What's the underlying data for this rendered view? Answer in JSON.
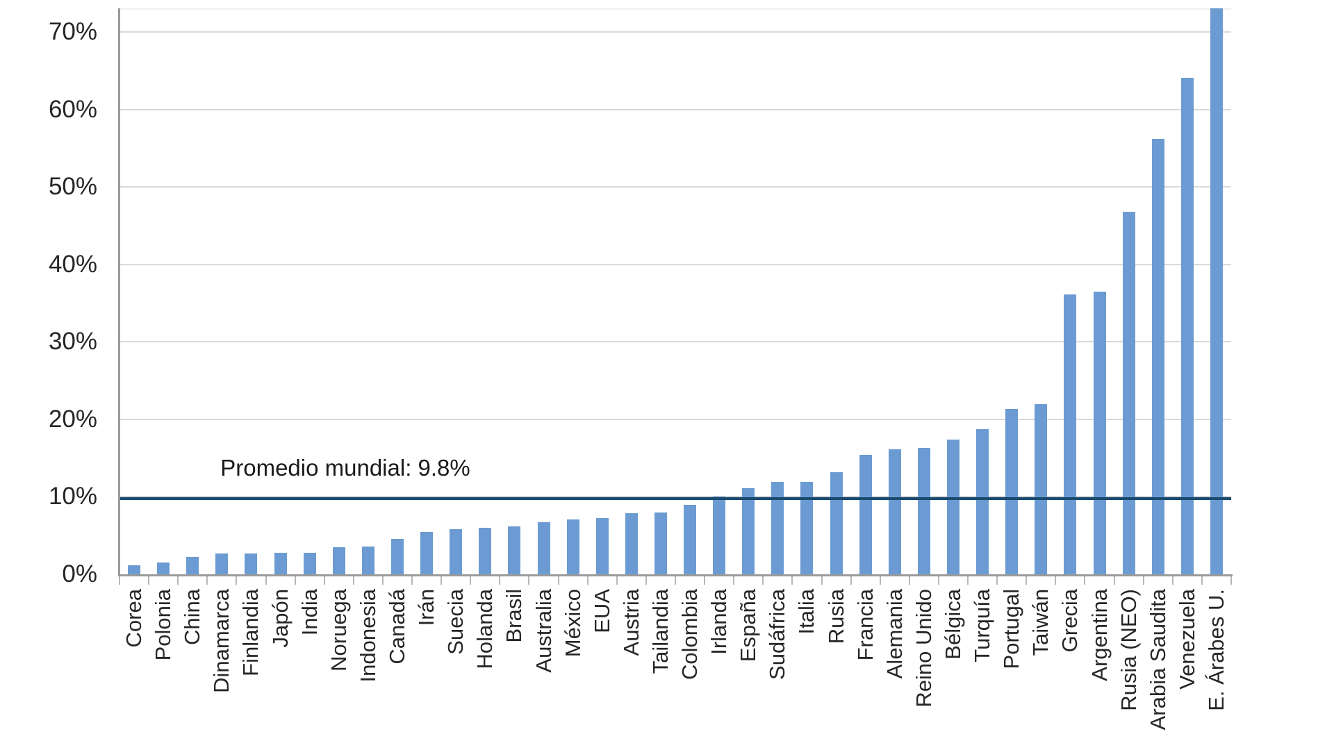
{
  "chart_data": {
    "type": "bar",
    "title": "",
    "xlabel": "",
    "ylabel": "",
    "categories": [
      "Corea",
      "Polonia",
      "China",
      "Dinamarca",
      "Finlandia",
      "Japón",
      "India",
      "Noruega",
      "Indonesia",
      "Canadá",
      "Irán",
      "Suecia",
      "Holanda",
      "Brasil",
      "Australia",
      "México",
      "EUA",
      "Austria",
      "Tailandia",
      "Colombia",
      "Irlanda",
      "España",
      "Sudáfrica",
      "Italia",
      "Rusia",
      "Francia",
      "Alemania",
      "Reino Unido",
      "Bélgica",
      "Turquía",
      "Portugal",
      "Taiwán",
      "Grecia",
      "Argentina",
      "Rusia (NEO)",
      "Arabia Saudita",
      "Venezuela",
      "E. Árabes U."
    ],
    "values": [
      1.2,
      1.5,
      2.2,
      2.7,
      2.7,
      2.8,
      2.8,
      3.5,
      3.6,
      4.6,
      5.5,
      5.8,
      6.0,
      6.2,
      6.7,
      7.1,
      7.3,
      7.9,
      8.0,
      9.0,
      10.0,
      11.1,
      11.9,
      11.9,
      13.2,
      15.4,
      16.1,
      16.3,
      17.4,
      18.7,
      21.3,
      22.0,
      36.1,
      36.5,
      46.8,
      56.2,
      64.1,
      73.1
    ],
    "average_line": {
      "value": 9.8,
      "label": "Promedio mundial: 9.8%"
    },
    "y_axis": {
      "tick_values": [
        0,
        10,
        20,
        30,
        40,
        50,
        60,
        70
      ],
      "tick_labels": [
        "0%",
        "10%",
        "20%",
        "30%",
        "40%",
        "50%",
        "60%",
        "70%"
      ],
      "ylim": [
        0,
        73
      ]
    },
    "grid": true,
    "legend": false,
    "colors": {
      "bar": "#6b9bd2",
      "average_line": "#1a4a6e",
      "gridline": "#d9d9d9",
      "axis": "#9a9a9a",
      "text": "#262626"
    }
  }
}
